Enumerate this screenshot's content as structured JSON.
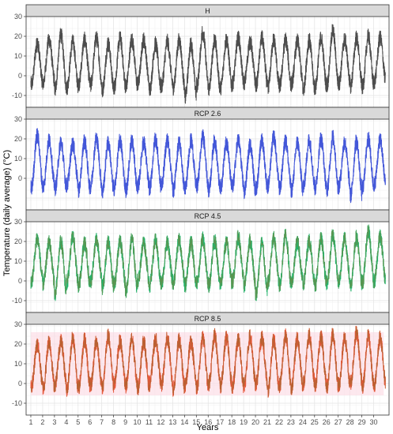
{
  "chart_data": {
    "type": "line",
    "facet_layout": "vertical",
    "xlabel": "Years",
    "ylabel": "Temperature (daily average) (°C)",
    "x_ticks": [
      "1",
      "2",
      "3",
      "4",
      "5",
      "6",
      "7",
      "8",
      "9",
      "10",
      "11",
      "12",
      "13",
      "14",
      "15",
      "16",
      "17",
      "18",
      "19",
      "20",
      "21",
      "22",
      "23",
      "24",
      "25",
      "26",
      "27",
      "28",
      "29",
      "30"
    ],
    "xlim": [
      0.6,
      31.3
    ],
    "ylim": [
      -16,
      30
    ],
    "y_ticks": [
      -10,
      0,
      10,
      20,
      30
    ],
    "grid": true,
    "panels": [
      {
        "title": "H",
        "color": "#4d4d4d",
        "y_ticks": [
          -10,
          0,
          10,
          20,
          30
        ],
        "approx_annual_max": [
          19,
          21,
          24,
          20,
          21,
          22,
          19,
          22,
          21,
          21,
          19,
          20,
          21,
          19,
          25,
          21,
          21,
          22,
          20,
          22,
          21,
          21,
          20,
          21,
          22,
          26,
          21,
          22,
          23,
          22
        ],
        "approx_annual_min": [
          -7,
          -6,
          -10,
          -9,
          -7,
          -8,
          -10,
          -9,
          -8,
          -7,
          -10,
          -8,
          -9,
          -14,
          -8,
          -10,
          -9,
          -7,
          -6,
          -8,
          -9,
          -8,
          -7,
          -10,
          -9,
          -8,
          -7,
          -8,
          -9,
          -6
        ]
      },
      {
        "title": "RCP 2.6",
        "color": "#4357d8",
        "y_ticks": [
          0,
          10,
          20,
          30
        ],
        "approx_annual_max": [
          25,
          22,
          21,
          20,
          22,
          23,
          21,
          22,
          22,
          21,
          23,
          22,
          21,
          22,
          24,
          22,
          21,
          22,
          20,
          22,
          24,
          22,
          21,
          22,
          23,
          24,
          21,
          22,
          23,
          22
        ],
        "approx_annual_min": [
          -8,
          -7,
          -8,
          -6,
          -9,
          -7,
          -10,
          -8,
          -9,
          -7,
          -8,
          -6,
          -9,
          -8,
          -7,
          -9,
          -8,
          -7,
          -10,
          -8,
          -7,
          -8,
          -9,
          -7,
          -8,
          -9,
          -7,
          -12,
          -8,
          -6
        ]
      },
      {
        "title": "RCP 4.5",
        "color": "#22b46b",
        "y_ticks": [
          -10,
          0,
          10,
          20,
          30
        ],
        "approx_annual_max": [
          24,
          22,
          23,
          25,
          22,
          23,
          22,
          22,
          24,
          22,
          23,
          22,
          23,
          22,
          24,
          23,
          22,
          25,
          23,
          22,
          24,
          26,
          22,
          23,
          24,
          26,
          24,
          25,
          28,
          25
        ],
        "approx_annual_min": [
          -3,
          -4,
          -10,
          -4,
          -5,
          -3,
          -6,
          -4,
          -8,
          -3,
          -5,
          -4,
          -3,
          -5,
          -4,
          -5,
          -4,
          -3,
          -5,
          -10,
          -4,
          -5,
          -3,
          -4,
          -5,
          -4,
          -3,
          -5,
          -4,
          -3
        ]
      },
      {
        "title": "RCP 8.5",
        "color": "#e8573a",
        "band_color": "#fbd9e3",
        "y_ticks": [
          -10,
          0,
          10,
          20,
          30
        ],
        "approx_annual_max": [
          22,
          24,
          24,
          26,
          25,
          24,
          27,
          24,
          25,
          24,
          25,
          26,
          25,
          24,
          26,
          27,
          26,
          25,
          27,
          26,
          25,
          27,
          26,
          27,
          26,
          28,
          26,
          29,
          27,
          26
        ],
        "approx_annual_min": [
          -4,
          -5,
          -3,
          -6,
          -5,
          -4,
          -5,
          -3,
          -4,
          -5,
          -3,
          -4,
          -6,
          -4,
          -5,
          -3,
          -4,
          -5,
          -4,
          -3,
          -7,
          -4,
          -5,
          -3,
          -4,
          -5,
          -4,
          -3,
          -5,
          -4
        ]
      }
    ]
  }
}
